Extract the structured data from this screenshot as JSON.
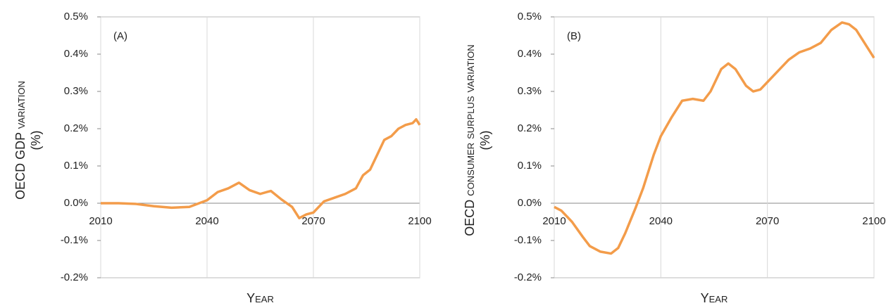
{
  "chart_data": [
    {
      "type": "line",
      "annotation": "(A)",
      "xlabel": "Year",
      "ylabel": [
        "OECD GDP variation",
        "(%)"
      ],
      "x": [
        2010,
        2015,
        2020,
        2025,
        2030,
        2035,
        2040,
        2043,
        2046,
        2049,
        2052,
        2055,
        2058,
        2061,
        2064,
        2066,
        2068,
        2070,
        2073,
        2076,
        2079,
        2082,
        2084,
        2086,
        2088,
        2090,
        2092,
        2094,
        2096,
        2098,
        2099,
        2100
      ],
      "series": [
        {
          "color": "#f39c4a",
          "values": [
            0,
            0,
            -0.002,
            -0.008,
            -0.012,
            -0.01,
            0.008,
            0.03,
            0.04,
            0.055,
            0.035,
            0.025,
            0.033,
            0.01,
            -0.01,
            -0.04,
            -0.03,
            -0.025,
            0.005,
            0.015,
            0.025,
            0.04,
            0.075,
            0.09,
            0.13,
            0.17,
            0.18,
            0.2,
            0.21,
            0.215,
            0.225,
            0.21
          ]
        }
      ],
      "xlim": [
        2010,
        2100
      ],
      "xticks": [
        2010,
        2040,
        2070,
        2100
      ],
      "ylim": [
        -0.2,
        0.5
      ],
      "yticks": [
        {
          "value": -0.2,
          "label": "-0.2%"
        },
        {
          "value": -0.1,
          "label": "-0.1%"
        },
        {
          "value": 0,
          "label": "0.0%"
        },
        {
          "value": 0.1,
          "label": "0.1%"
        },
        {
          "value": 0.2,
          "label": "0.2%"
        },
        {
          "value": 0.3,
          "label": "0.3%"
        },
        {
          "value": 0.4,
          "label": "0.4%"
        },
        {
          "value": 0.5,
          "label": "0.5%"
        }
      ],
      "grid": true
    },
    {
      "type": "line",
      "annotation": "(B)",
      "xlabel": "Year",
      "ylabel": [
        "OECD consumer surplus variation",
        "(%)"
      ],
      "x": [
        2010,
        2012,
        2015,
        2018,
        2020,
        2023,
        2026,
        2028,
        2030,
        2033,
        2035,
        2038,
        2040,
        2043,
        2046,
        2049,
        2052,
        2054,
        2057,
        2059,
        2061,
        2064,
        2066,
        2068,
        2070,
        2073,
        2076,
        2079,
        2082,
        2085,
        2088,
        2091,
        2093,
        2095,
        2097,
        2099,
        2100
      ],
      "series": [
        {
          "color": "#f39c4a",
          "values": [
            -0.01,
            -0.02,
            -0.05,
            -0.09,
            -0.115,
            -0.13,
            -0.135,
            -0.12,
            -0.08,
            -0.01,
            0.04,
            0.13,
            0.18,
            0.23,
            0.275,
            0.28,
            0.275,
            0.3,
            0.36,
            0.375,
            0.36,
            0.315,
            0.3,
            0.305,
            0.325,
            0.355,
            0.385,
            0.405,
            0.415,
            0.43,
            0.465,
            0.485,
            0.48,
            0.465,
            0.435,
            0.405,
            0.39
          ]
        }
      ],
      "xlim": [
        2010,
        2100
      ],
      "xticks": [
        2010,
        2040,
        2070,
        2100
      ],
      "ylim": [
        -0.2,
        0.5
      ],
      "yticks": [
        {
          "value": -0.2,
          "label": "-0.2%"
        },
        {
          "value": -0.1,
          "label": "-0.1%"
        },
        {
          "value": 0,
          "label": "0.0%"
        },
        {
          "value": 0.1,
          "label": "0.1%"
        },
        {
          "value": 0.2,
          "label": "0.2%"
        },
        {
          "value": 0.3,
          "label": "0.3%"
        },
        {
          "value": 0.4,
          "label": "0.4%"
        },
        {
          "value": 0.5,
          "label": "0.5%"
        }
      ],
      "grid": true
    }
  ]
}
